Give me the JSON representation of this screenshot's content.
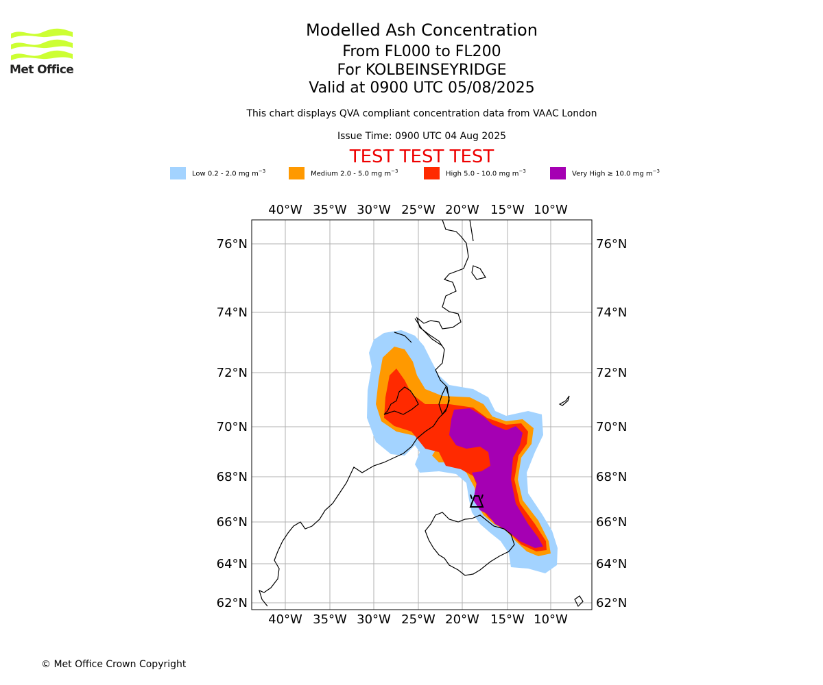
{
  "logo": {
    "text": "Met Office",
    "color": "#ccff33"
  },
  "header": {
    "title": "Modelled Ash Concentration",
    "levels": "From FL000 to FL200",
    "location": "For KOLBEINSEYRIDGE",
    "valid": "Valid at 0900 UTC 05/08/2025",
    "description": "This chart displays QVA compliant concentration data from VAAC London",
    "issue_time": "Issue Time: 0900 UTC 04 Aug 2025",
    "test_banner": "TEST TEST TEST"
  },
  "legend": [
    {
      "label": "Low 0.2 - 2.0 mg m",
      "unit_exp": "−3",
      "color": "#a3d3ff"
    },
    {
      "label": "Medium 2.0 - 5.0 mg m",
      "unit_exp": "−3",
      "color": "#ff9900"
    },
    {
      "label": "High 5.0 - 10.0 mg m",
      "unit_exp": "−3",
      "color": "#ff2a00"
    },
    {
      "label": "Very High ≥ 10.0 mg m",
      "unit_exp": "−3",
      "color": "#a500b3"
    }
  ],
  "map": {
    "lon_ticks": [
      "40°W",
      "35°W",
      "30°W",
      "25°W",
      "20°W",
      "15°W",
      "10°W"
    ],
    "lat_ticks": [
      "76°N",
      "74°N",
      "72°N",
      "70°N",
      "68°N",
      "66°N",
      "64°N",
      "62°N"
    ],
    "volcano_marker": "volcano-icon"
  },
  "footer": {
    "copyright": "© Met Office Crown Copyright"
  }
}
